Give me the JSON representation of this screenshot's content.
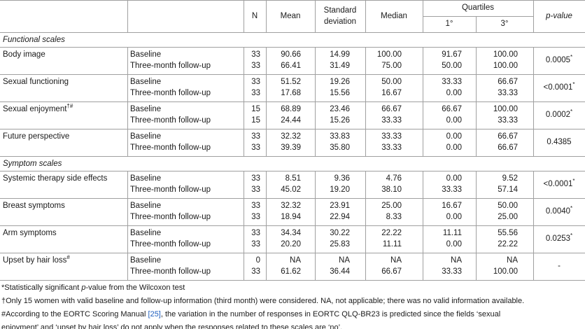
{
  "table": {
    "header": {
      "n": "N",
      "mean": "Mean",
      "sd": "Standard deviation",
      "median": "Median",
      "quartiles": "Quartiles",
      "q1": "1°",
      "q3": "3°",
      "p": "p-value"
    },
    "sections": [
      {
        "title": "Functional scales",
        "rows": [
          {
            "label": "Body image",
            "p": "0.0005",
            "p_sup": "*",
            "lines": [
              {
                "time": "Baseline",
                "n": "33",
                "mean": "90.66",
                "sd": "14.99",
                "median": "100.00",
                "q1": "91.67",
                "q3": "100.00"
              },
              {
                "time": "Three-month follow-up",
                "n": "33",
                "mean": "66.41",
                "sd": "31.49",
                "median": "75.00",
                "q1": "50.00",
                "q3": "100.00"
              }
            ]
          },
          {
            "label": "Sexual functioning",
            "p": "<0.0001",
            "p_sup": "*",
            "lines": [
              {
                "time": "Baseline",
                "n": "33",
                "mean": "51.52",
                "sd": "19.26",
                "median": "50.00",
                "q1": "33.33",
                "q3": "66.67"
              },
              {
                "time": "Three-month follow-up",
                "n": "33",
                "mean": "17.68",
                "sd": "15.56",
                "median": "16.67",
                "q1": "0.00",
                "q3": "33.33"
              }
            ]
          },
          {
            "label": "Sexual enjoyment",
            "label_sup": "†#",
            "p": "0.0002",
            "p_sup": "*",
            "lines": [
              {
                "time": "Baseline",
                "n": "15",
                "mean": "68.89",
                "sd": "23.46",
                "median": "66.67",
                "q1": "66.67",
                "q3": "100.00"
              },
              {
                "time": "Three-month follow-up",
                "n": "15",
                "mean": "24.44",
                "sd": "15.26",
                "median": "33.33",
                "q1": "0.00",
                "q3": "33.33"
              }
            ]
          },
          {
            "label": "Future perspective",
            "p": "0.4385",
            "lines": [
              {
                "time": "Baseline",
                "n": "33",
                "mean": "32.32",
                "sd": "33.83",
                "median": "33.33",
                "q1": "0.00",
                "q3": "66.67"
              },
              {
                "time": "Three-month follow-up",
                "n": "33",
                "mean": "39.39",
                "sd": "35.80",
                "median": "33.33",
                "q1": "0.00",
                "q3": "66.67"
              }
            ]
          }
        ]
      },
      {
        "title": "Symptom scales",
        "rows": [
          {
            "label": "Systemic therapy side effects",
            "p": "<0.0001",
            "p_sup": "*",
            "lines": [
              {
                "time": "Baseline",
                "n": "33",
                "mean": "8.51",
                "sd": "9.36",
                "median": "4.76",
                "q1": "0.00",
                "q3": "9.52"
              },
              {
                "time": "Three-month follow-up",
                "n": "33",
                "mean": "45.02",
                "sd": "19.20",
                "median": "38.10",
                "q1": "33.33",
                "q3": "57.14"
              }
            ]
          },
          {
            "label": "Breast symptoms",
            "p": "0.0040",
            "p_sup": "*",
            "lines": [
              {
                "time": "Baseline",
                "n": "33",
                "mean": "32.32",
                "sd": "23.91",
                "median": "25.00",
                "q1": "16.67",
                "q3": "50.00"
              },
              {
                "time": "Three-month follow-up",
                "n": "33",
                "mean": "18.94",
                "sd": "22.94",
                "median": "8.33",
                "q1": "0.00",
                "q3": "25.00"
              }
            ]
          },
          {
            "label": "Arm symptoms",
            "p": "0.0253",
            "p_sup": "*",
            "lines": [
              {
                "time": "Baseline",
                "n": "33",
                "mean": "34.34",
                "sd": "30.22",
                "median": "22.22",
                "q1": "11.11",
                "q3": "55.56"
              },
              {
                "time": "Three-month follow-up",
                "n": "33",
                "mean": "20.20",
                "sd": "25.83",
                "median": "11.11",
                "q1": "0.00",
                "q3": "22.22"
              }
            ]
          },
          {
            "label": "Upset by hair loss",
            "label_sup": "#",
            "p": "-",
            "lines": [
              {
                "time": "Baseline",
                "n": "0",
                "mean": "NA",
                "sd": "NA",
                "median": "NA",
                "q1": "NA",
                "q3": "NA"
              },
              {
                "time": "Three-month follow-up",
                "n": "33",
                "mean": "61.62",
                "sd": "36.44",
                "median": "66.67",
                "q1": "33.33",
                "q3": "100.00"
              }
            ]
          }
        ]
      }
    ]
  },
  "footnotes": [
    [
      "*Statistically significant ",
      "p",
      "-value from the Wilcoxon test"
    ],
    [
      "†Only 15 women with valid baseline and follow-up information (third month) were considered. NA, not applicable; there was no valid information available."
    ],
    [
      "#According to the EORTC Scoring Manual ",
      "[25]",
      ", the variation in the number of responses in EORTC QLQ-BR23 is predicted since the fields ‘sexual"
    ],
    [
      "enjoyment’ and ‘upset by hair loss’ do not apply when the responses related to these scales are ‘no’."
    ]
  ]
}
